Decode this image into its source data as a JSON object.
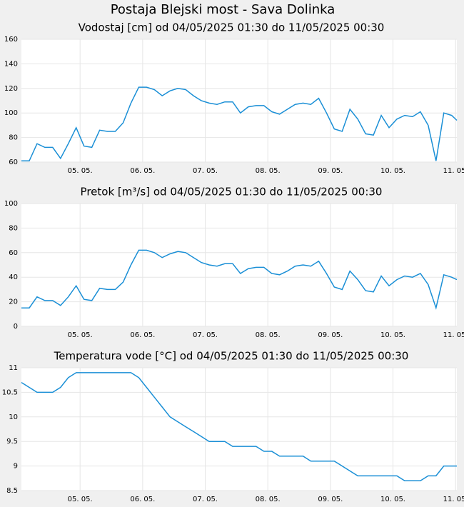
{
  "title": "Postaja Blejski most - Sava Dolinka",
  "chart_data": [
    {
      "type": "line",
      "title": "Vodostaj [cm] od 04/05/2025 01:30 do 11/05/2025 00:30",
      "color": "#1a8fd6",
      "grid": true,
      "x": [
        "2025-05-04T01:30",
        "2025-05-04T04:30",
        "2025-05-04T07:30",
        "2025-05-04T10:30",
        "2025-05-04T13:30",
        "2025-05-04T16:30",
        "2025-05-04T19:30",
        "2025-05-04T22:30",
        "2025-05-05T01:30",
        "2025-05-05T04:30",
        "2025-05-05T07:30",
        "2025-05-05T10:30",
        "2025-05-05T13:30",
        "2025-05-05T16:30",
        "2025-05-05T19:30",
        "2025-05-05T22:30",
        "2025-05-06T01:30",
        "2025-05-06T04:30",
        "2025-05-06T07:30",
        "2025-05-06T10:30",
        "2025-05-06T13:30",
        "2025-05-06T16:30",
        "2025-05-06T19:30",
        "2025-05-06T22:30",
        "2025-05-07T01:30",
        "2025-05-07T04:30",
        "2025-05-07T07:30",
        "2025-05-07T10:30",
        "2025-05-07T13:30",
        "2025-05-07T16:30",
        "2025-05-07T19:30",
        "2025-05-07T22:30",
        "2025-05-08T01:30",
        "2025-05-08T04:30",
        "2025-05-08T07:30",
        "2025-05-08T10:30",
        "2025-05-08T13:30",
        "2025-05-08T16:30",
        "2025-05-08T19:30",
        "2025-05-08T22:30",
        "2025-05-09T01:30",
        "2025-05-09T04:30",
        "2025-05-09T07:30",
        "2025-05-09T10:30",
        "2025-05-09T13:30",
        "2025-05-09T16:30",
        "2025-05-09T19:30",
        "2025-05-09T22:30",
        "2025-05-10T01:30",
        "2025-05-10T04:30",
        "2025-05-10T07:30",
        "2025-05-10T10:30",
        "2025-05-10T13:30",
        "2025-05-10T16:30",
        "2025-05-10T19:30",
        "2025-05-10T22:30",
        "2025-05-11T00:30"
      ],
      "values": [
        61,
        61,
        75,
        72,
        72,
        63,
        75,
        88,
        73,
        72,
        86,
        85,
        85,
        92,
        108,
        121,
        121,
        119,
        114,
        118,
        120,
        119,
        114,
        110,
        108,
        107,
        109,
        109,
        100,
        105,
        106,
        106,
        101,
        99,
        103,
        107,
        108,
        107,
        112,
        100,
        87,
        85,
        103,
        95,
        83,
        82,
        98,
        88,
        95,
        98,
        97,
        101,
        90,
        61,
        100,
        98,
        94
      ],
      "xlim": [
        "2025-05-04T01:30",
        "2025-05-11T00:30"
      ],
      "xticks": [
        {
          "value": "2025-05-05T00:00",
          "label": "05. 05."
        },
        {
          "value": "2025-05-06T00:00",
          "label": "06. 05."
        },
        {
          "value": "2025-05-07T00:00",
          "label": "07. 05."
        },
        {
          "value": "2025-05-08T00:00",
          "label": "08. 05."
        },
        {
          "value": "2025-05-09T00:00",
          "label": "09. 05."
        },
        {
          "value": "2025-05-10T00:00",
          "label": "10. 05."
        },
        {
          "value": "2025-05-11T00:00",
          "label": "11. 05."
        }
      ],
      "ylim": [
        60,
        160
      ],
      "yticks": [
        60,
        80,
        100,
        120,
        140,
        160
      ]
    },
    {
      "type": "line",
      "title": "Pretok [m³/s] od 04/05/2025 01:30 do 11/05/2025 00:30",
      "color": "#1a8fd6",
      "grid": true,
      "x": [
        "2025-05-04T01:30",
        "2025-05-04T04:30",
        "2025-05-04T07:30",
        "2025-05-04T10:30",
        "2025-05-04T13:30",
        "2025-05-04T16:30",
        "2025-05-04T19:30",
        "2025-05-04T22:30",
        "2025-05-05T01:30",
        "2025-05-05T04:30",
        "2025-05-05T07:30",
        "2025-05-05T10:30",
        "2025-05-05T13:30",
        "2025-05-05T16:30",
        "2025-05-05T19:30",
        "2025-05-05T22:30",
        "2025-05-06T01:30",
        "2025-05-06T04:30",
        "2025-05-06T07:30",
        "2025-05-06T10:30",
        "2025-05-06T13:30",
        "2025-05-06T16:30",
        "2025-05-06T19:30",
        "2025-05-06T22:30",
        "2025-05-07T01:30",
        "2025-05-07T04:30",
        "2025-05-07T07:30",
        "2025-05-07T10:30",
        "2025-05-07T13:30",
        "2025-05-07T16:30",
        "2025-05-07T19:30",
        "2025-05-07T22:30",
        "2025-05-08T01:30",
        "2025-05-08T04:30",
        "2025-05-08T07:30",
        "2025-05-08T10:30",
        "2025-05-08T13:30",
        "2025-05-08T16:30",
        "2025-05-08T19:30",
        "2025-05-08T22:30",
        "2025-05-09T01:30",
        "2025-05-09T04:30",
        "2025-05-09T07:30",
        "2025-05-09T10:30",
        "2025-05-09T13:30",
        "2025-05-09T16:30",
        "2025-05-09T19:30",
        "2025-05-09T22:30",
        "2025-05-10T01:30",
        "2025-05-10T04:30",
        "2025-05-10T07:30",
        "2025-05-10T10:30",
        "2025-05-10T13:30",
        "2025-05-10T16:30",
        "2025-05-10T19:30",
        "2025-05-10T22:30",
        "2025-05-11T00:30"
      ],
      "values": [
        15,
        15,
        24,
        21,
        21,
        17,
        24,
        33,
        22,
        21,
        31,
        30,
        30,
        36,
        50,
        62,
        62,
        60,
        56,
        59,
        61,
        60,
        56,
        52,
        50,
        49,
        51,
        51,
        43,
        47,
        48,
        48,
        43,
        42,
        45,
        49,
        50,
        49,
        53,
        43,
        32,
        30,
        45,
        38,
        29,
        28,
        41,
        33,
        38,
        41,
        40,
        43,
        34,
        15,
        42,
        40,
        38
      ],
      "xlim": [
        "2025-05-04T01:30",
        "2025-05-11T00:30"
      ],
      "xticks": [
        {
          "value": "2025-05-05T00:00",
          "label": "05. 05."
        },
        {
          "value": "2025-05-06T00:00",
          "label": "06. 05."
        },
        {
          "value": "2025-05-07T00:00",
          "label": "07. 05."
        },
        {
          "value": "2025-05-08T00:00",
          "label": "08. 05."
        },
        {
          "value": "2025-05-09T00:00",
          "label": "09. 05."
        },
        {
          "value": "2025-05-10T00:00",
          "label": "10. 05."
        },
        {
          "value": "2025-05-11T00:00",
          "label": "11. 05."
        }
      ],
      "ylim": [
        0,
        100
      ],
      "yticks": [
        0,
        20,
        40,
        60,
        80,
        100
      ]
    },
    {
      "type": "line",
      "title": "Temperatura vode [°C] od 04/05/2025 01:30 do 11/05/2025 00:30",
      "color": "#1a8fd6",
      "grid": true,
      "x": [
        "2025-05-04T01:30",
        "2025-05-04T04:30",
        "2025-05-04T07:30",
        "2025-05-04T10:30",
        "2025-05-04T13:30",
        "2025-05-04T16:30",
        "2025-05-04T19:30",
        "2025-05-04T22:30",
        "2025-05-05T01:30",
        "2025-05-05T04:30",
        "2025-05-05T07:30",
        "2025-05-05T10:30",
        "2025-05-05T13:30",
        "2025-05-05T16:30",
        "2025-05-05T19:30",
        "2025-05-05T22:30",
        "2025-05-06T01:30",
        "2025-05-06T04:30",
        "2025-05-06T07:30",
        "2025-05-06T10:30",
        "2025-05-06T13:30",
        "2025-05-06T16:30",
        "2025-05-06T19:30",
        "2025-05-06T22:30",
        "2025-05-07T01:30",
        "2025-05-07T04:30",
        "2025-05-07T07:30",
        "2025-05-07T10:30",
        "2025-05-07T13:30",
        "2025-05-07T16:30",
        "2025-05-07T19:30",
        "2025-05-07T22:30",
        "2025-05-08T01:30",
        "2025-05-08T04:30",
        "2025-05-08T07:30",
        "2025-05-08T10:30",
        "2025-05-08T13:30",
        "2025-05-08T16:30",
        "2025-05-08T19:30",
        "2025-05-08T22:30",
        "2025-05-09T01:30",
        "2025-05-09T04:30",
        "2025-05-09T07:30",
        "2025-05-09T10:30",
        "2025-05-09T13:30",
        "2025-05-09T16:30",
        "2025-05-09T19:30",
        "2025-05-09T22:30",
        "2025-05-10T01:30",
        "2025-05-10T04:30",
        "2025-05-10T07:30",
        "2025-05-10T10:30",
        "2025-05-10T13:30",
        "2025-05-10T16:30",
        "2025-05-10T19:30",
        "2025-05-10T22:30",
        "2025-05-11T00:30"
      ],
      "values": [
        10.7,
        10.6,
        10.5,
        10.5,
        10.5,
        10.6,
        10.8,
        10.9,
        10.9,
        10.9,
        10.9,
        10.9,
        10.9,
        10.9,
        10.9,
        10.8,
        10.6,
        10.4,
        10.2,
        10,
        9.9,
        9.8,
        9.7,
        9.6,
        9.5,
        9.5,
        9.5,
        9.4,
        9.4,
        9.4,
        9.4,
        9.3,
        9.3,
        9.2,
        9.2,
        9.2,
        9.2,
        9.1,
        9.1,
        9.1,
        9.1,
        9,
        8.9,
        8.8,
        8.8,
        8.8,
        8.8,
        8.8,
        8.8,
        8.7,
        8.7,
        8.7,
        8.8,
        8.8,
        9,
        9,
        9
      ],
      "xlim": [
        "2025-05-04T01:30",
        "2025-05-11T00:30"
      ],
      "xticks": [
        {
          "value": "2025-05-05T00:00",
          "label": "05. 05."
        },
        {
          "value": "2025-05-06T00:00",
          "label": "06. 05."
        },
        {
          "value": "2025-05-07T00:00",
          "label": "07. 05."
        },
        {
          "value": "2025-05-08T00:00",
          "label": "08. 05."
        },
        {
          "value": "2025-05-09T00:00",
          "label": "09. 05."
        },
        {
          "value": "2025-05-10T00:00",
          "label": "10. 05."
        },
        {
          "value": "2025-05-11T00:00",
          "label": "11. 05."
        }
      ],
      "ylim": [
        8.5,
        11
      ],
      "yticks": [
        8.5,
        9,
        9.5,
        10,
        10.5,
        11
      ]
    }
  ]
}
